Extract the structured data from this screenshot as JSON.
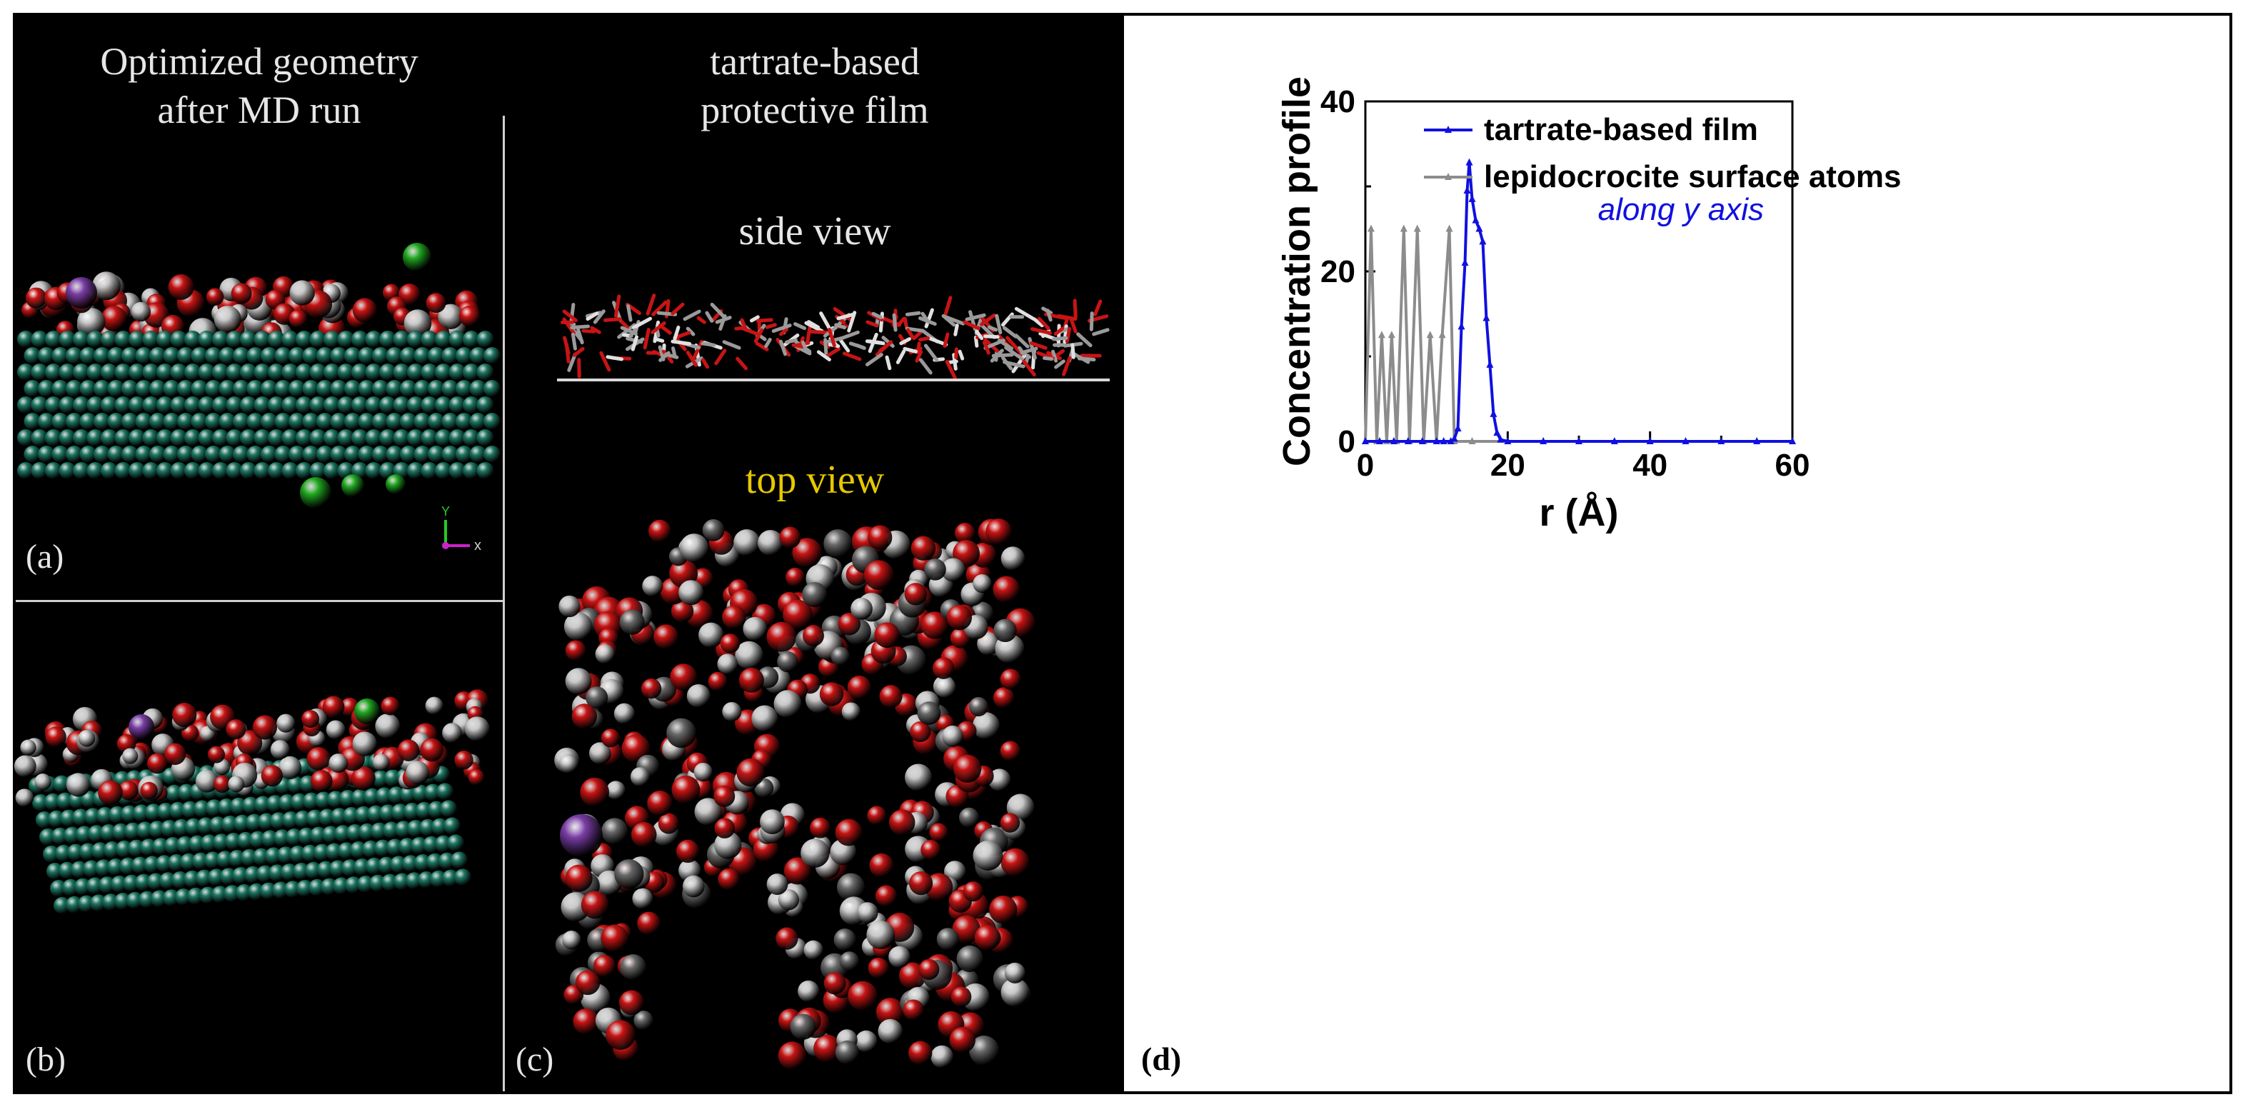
{
  "panel_a": {
    "title_line1": "Optimized geometry",
    "title_line2": "after MD run",
    "label": "(a)",
    "axis_y": "Y",
    "axis_x": "x"
  },
  "panel_b": {
    "label": "(b)"
  },
  "panel_c": {
    "title_line1": "tartrate-based",
    "title_line2": "protective film",
    "side_view": "side view",
    "top_view": "top view",
    "label": "(c)"
  },
  "panel_d": {
    "label": "(d)"
  },
  "colors": {
    "slab": "#1f7a66",
    "oxygen": "#c81414",
    "hydrogen": "#c8c8c8",
    "chloride": "#22aa22",
    "sodium": "#7a3ea8",
    "top_view_label": "#e6c800",
    "film_series": "#1010e0",
    "surface_series": "#8c8c8c"
  },
  "chart_data": {
    "type": "line",
    "xlabel": "r (Å)",
    "ylabel": "Concentration profile",
    "xlim": [
      0,
      60
    ],
    "ylim": [
      0,
      40
    ],
    "xticks": [
      0,
      20,
      40,
      60
    ],
    "yticks": [
      0,
      20,
      40
    ],
    "annotation": "along y axis",
    "legend_position": "top",
    "series": [
      {
        "name": "tartrate-based film",
        "x": [
          0,
          2,
          4,
          6,
          8,
          10,
          11,
          12,
          12.5,
          13,
          13.5,
          14,
          14.3,
          14.6,
          15,
          15.5,
          16,
          16.5,
          17,
          17.5,
          18,
          18.5,
          19,
          20,
          25,
          30,
          35,
          40,
          45,
          50,
          55,
          60
        ],
        "y": [
          0,
          0,
          0,
          0,
          0,
          0,
          0,
          0,
          0.3,
          1.5,
          13.5,
          21,
          29.5,
          32.8,
          28.5,
          26,
          25,
          23.5,
          14.5,
          9,
          3.2,
          1,
          0.2,
          0,
          0,
          0,
          0,
          0,
          0,
          0,
          0,
          0
        ]
      },
      {
        "name": "lepidocrocite surface atoms",
        "x": [
          0,
          0.8,
          1.6,
          2.3,
          3,
          3.7,
          4.4,
          5.4,
          6.2,
          7.3,
          8.2,
          9.1,
          10,
          10.8,
          11.8,
          12.5,
          15,
          20,
          30,
          40,
          50,
          60
        ],
        "y": [
          0,
          25,
          0,
          12.5,
          0,
          12.5,
          0,
          25,
          0,
          25,
          0,
          12.5,
          0,
          12.5,
          25,
          0,
          0,
          0,
          0,
          0,
          0,
          0
        ]
      }
    ]
  }
}
